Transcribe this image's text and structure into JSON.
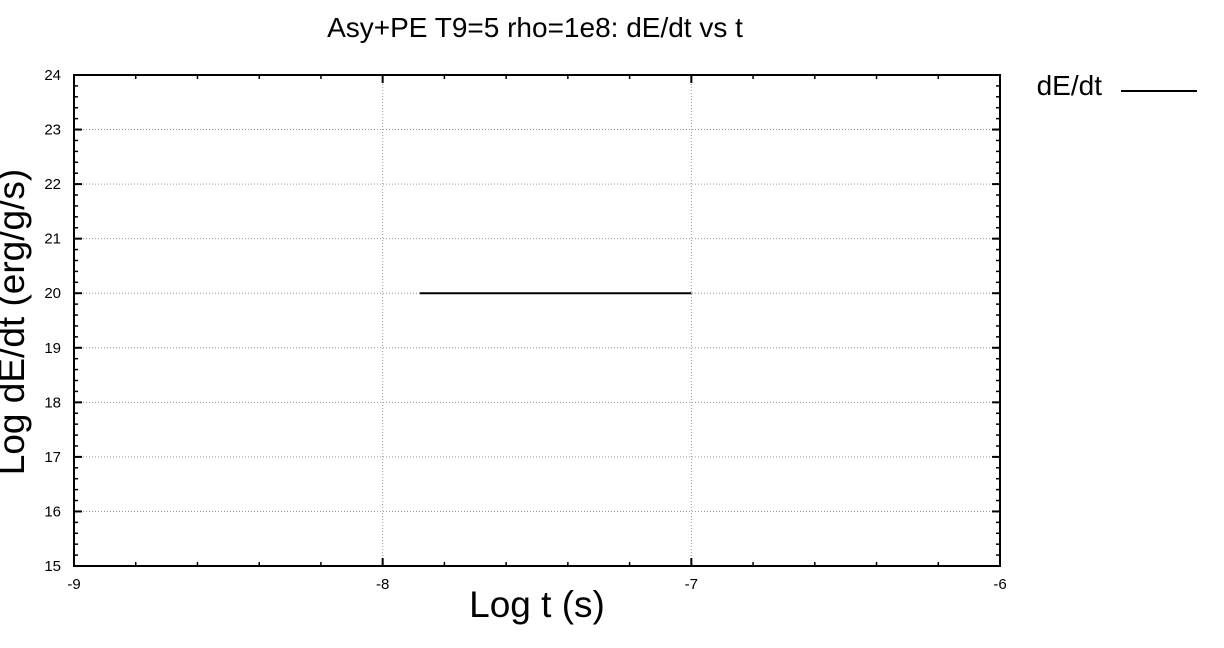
{
  "chart_data": {
    "type": "line",
    "title": "Asy+PE T9=5 rho=1e8: dE/dt vs t",
    "xlabel": "Log t (s)",
    "ylabel": "Log dE/dt (erg/g/s)",
    "xlim": [
      -9,
      -6
    ],
    "ylim": [
      15,
      24
    ],
    "x_ticks": [
      -9,
      -8,
      -7,
      -6
    ],
    "y_ticks": [
      15,
      16,
      17,
      18,
      19,
      20,
      21,
      22,
      23,
      24
    ],
    "x_minor_step": 0.2,
    "y_minor_step": 0.2,
    "grid": true,
    "legend_position": "top-right-outside",
    "series": [
      {
        "name": "dE/dt",
        "color": "#000000",
        "points": [
          {
            "x": -7.88,
            "y": 20.0
          },
          {
            "x": -7.0,
            "y": 20.0
          }
        ]
      }
    ]
  }
}
